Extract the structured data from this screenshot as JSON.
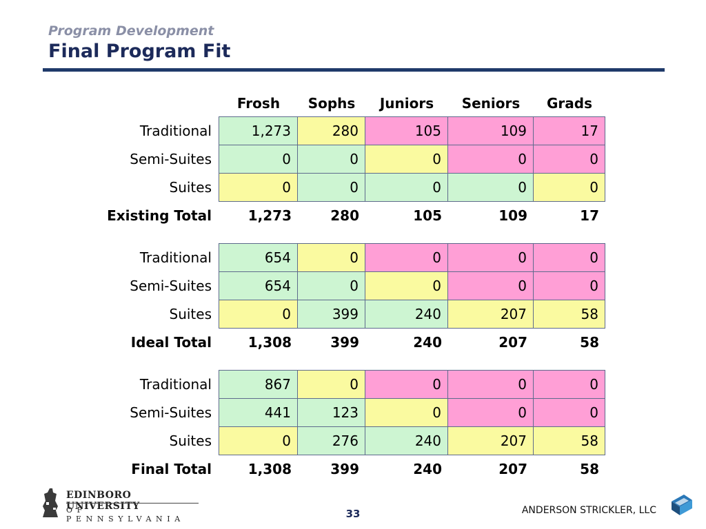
{
  "header": {
    "subtitle": "Program Development",
    "title": "Final Program Fit"
  },
  "columns": [
    "Frosh",
    "Sophs",
    "Juniors",
    "Seniors",
    "Grads"
  ],
  "sections": [
    {
      "rows": [
        {
          "label": "Traditional",
          "values": [
            "1,273",
            "280",
            "105",
            "109",
            "17"
          ],
          "colors": [
            "g",
            "y",
            "p",
            "p",
            "p"
          ]
        },
        {
          "label": "Semi-Suites",
          "values": [
            "0",
            "0",
            "0",
            "0",
            "0"
          ],
          "colors": [
            "g",
            "g",
            "y",
            "p",
            "p"
          ]
        },
        {
          "label": "Suites",
          "values": [
            "0",
            "0",
            "0",
            "0",
            "0"
          ],
          "colors": [
            "y",
            "g",
            "g",
            "g",
            "y"
          ]
        }
      ],
      "total": {
        "label": "Existing Total",
        "values": [
          "1,273",
          "280",
          "105",
          "109",
          "17"
        ]
      }
    },
    {
      "rows": [
        {
          "label": "Traditional",
          "values": [
            "654",
            "0",
            "0",
            "0",
            "0"
          ],
          "colors": [
            "g",
            "y",
            "p",
            "p",
            "p"
          ]
        },
        {
          "label": "Semi-Suites",
          "values": [
            "654",
            "0",
            "0",
            "0",
            "0"
          ],
          "colors": [
            "g",
            "g",
            "y",
            "p",
            "p"
          ]
        },
        {
          "label": "Suites",
          "values": [
            "0",
            "399",
            "240",
            "207",
            "58"
          ],
          "colors": [
            "y",
            "g",
            "g",
            "y",
            "y"
          ]
        }
      ],
      "total": {
        "label": "Ideal Total",
        "values": [
          "1,308",
          "399",
          "240",
          "207",
          "58"
        ]
      }
    },
    {
      "rows": [
        {
          "label": "Traditional",
          "values": [
            "867",
            "0",
            "0",
            "0",
            "0"
          ],
          "colors": [
            "g",
            "y",
            "p",
            "p",
            "p"
          ]
        },
        {
          "label": "Semi-Suites",
          "values": [
            "441",
            "123",
            "0",
            "0",
            "0"
          ],
          "colors": [
            "g",
            "g",
            "y",
            "p",
            "p"
          ]
        },
        {
          "label": "Suites",
          "values": [
            "0",
            "276",
            "240",
            "207",
            "58"
          ],
          "colors": [
            "y",
            "g",
            "g",
            "y",
            "y"
          ]
        }
      ],
      "total": {
        "label": "Final Total",
        "values": [
          "1,308",
          "399",
          "240",
          "207",
          "58"
        ]
      }
    }
  ],
  "colors": {
    "g": "#cdf5d2",
    "y": "#fafaa0",
    "p": "#ff9fd6",
    "title": "#1c2a5a",
    "subtitle": "#8a8fa6",
    "rule": "#1f3a6a"
  },
  "footer": {
    "university_name": "EDINBORO UNIVERSITY",
    "university_state": "OF PENNSYLVANIA",
    "page_number": "33",
    "company": "ANDERSON STRICKLER, LLC"
  }
}
